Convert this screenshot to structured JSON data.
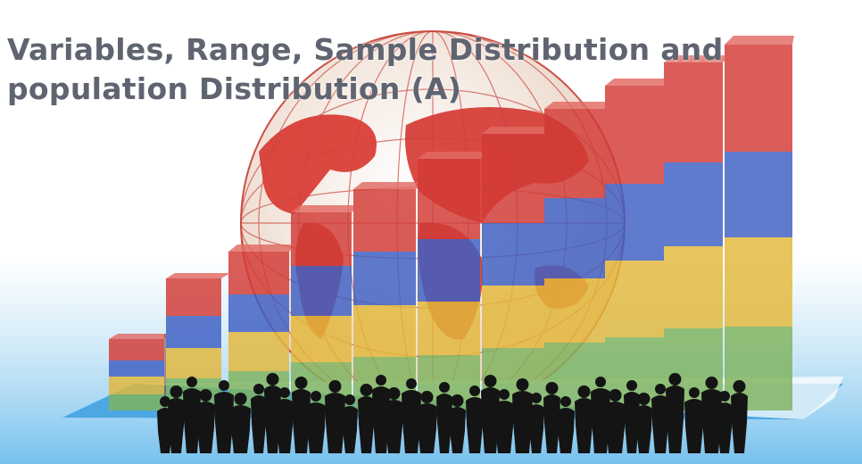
{
  "header": {
    "title_line1": "Variables, Range, Sample Distribution and",
    "title_line2": "population Distribution (A)"
  },
  "illustration": {
    "elements": [
      "concentric-rings-background",
      "globe-icon",
      "stacked-bar-graphic",
      "crowd-silhouette"
    ],
    "colors": {
      "red": "#d23a35",
      "blue": "#3d5fc4",
      "yellow": "#e3b83a",
      "green": "#7fb45c",
      "platform": "#49a4e0",
      "silhouette": "#141414",
      "title": "#5f6470"
    }
  }
}
